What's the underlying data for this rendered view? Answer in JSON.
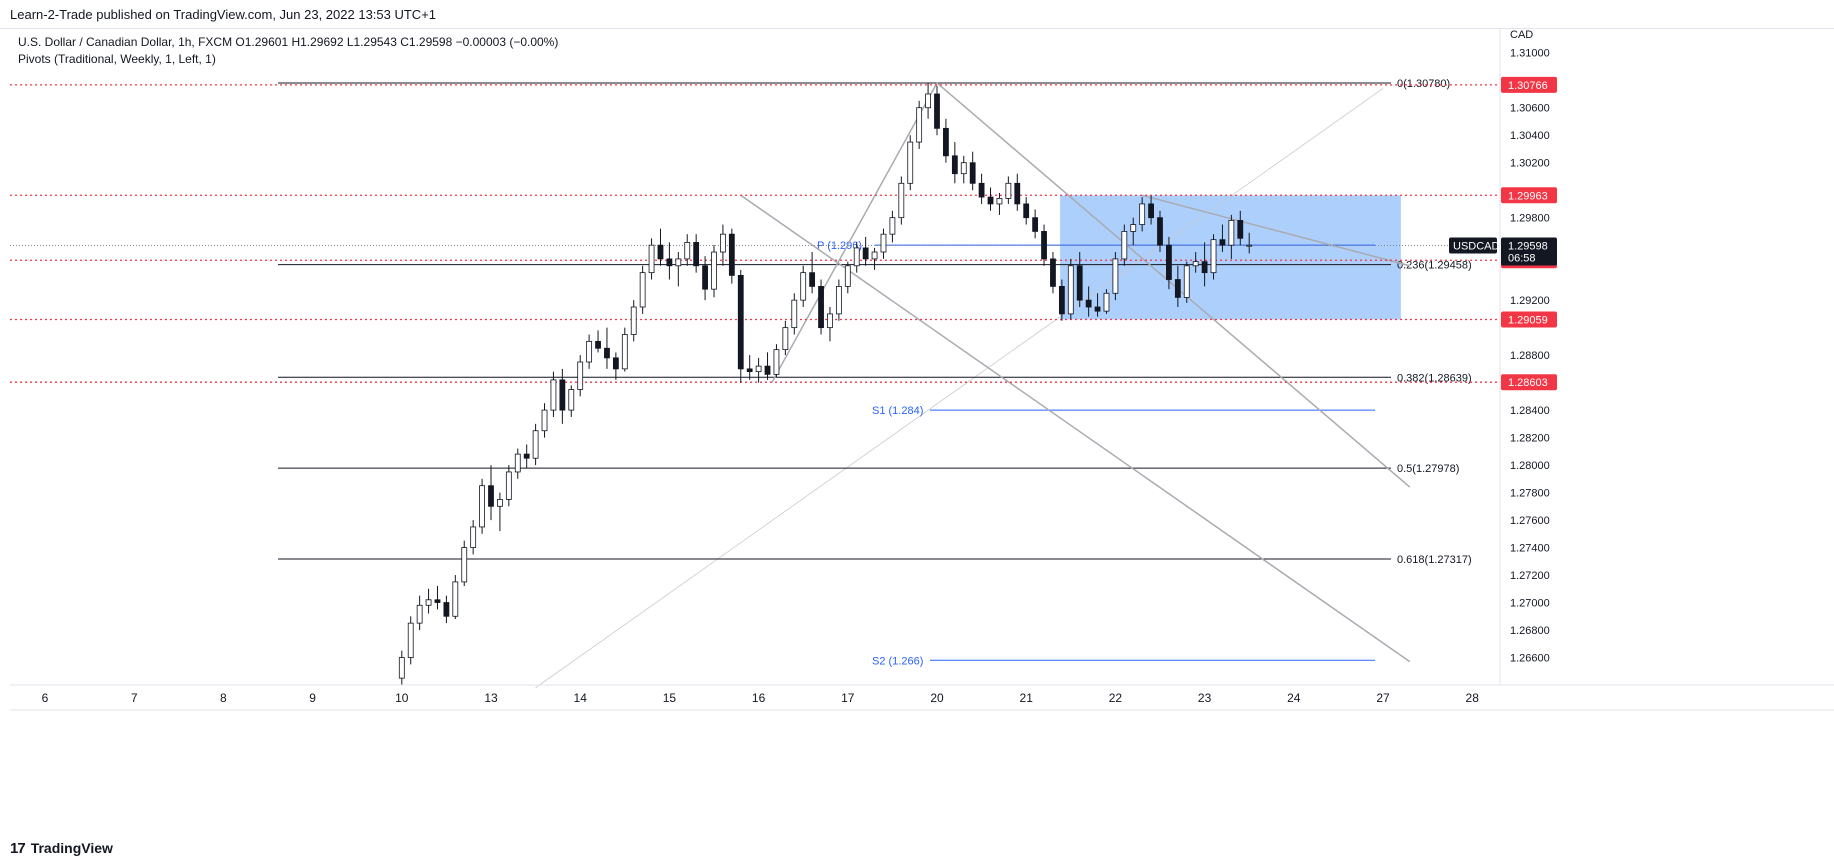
{
  "header": {
    "published": "Learn-2-Trade published on TradingView.com, Jun 23, 2022 13:53 UTC+1"
  },
  "legend": {
    "symbol_line": "U.S. Dollar / Canadian Dollar, 1h, FXCM  O1.29601  H1.29692  L1.29543  C1.29598  −0.00003 (−0.00%)",
    "indicator_line": "Pivots (Traditional, Weekly, 1, Left, 1)"
  },
  "footer": {
    "brand": "TradingView"
  },
  "chart_data": {
    "type": "candlestick",
    "symbol": "USDCAD",
    "currency": "CAD",
    "interval": "1h",
    "ohlc": {
      "open": 1.29601,
      "high": 1.29692,
      "low": 1.29543,
      "close": 1.29598
    },
    "ylim": [
      1.264,
      1.3118
    ],
    "y_ticks": [
      "1.31000",
      "1.30600",
      "1.30400",
      "1.30200",
      "1.29800",
      "1.29200",
      "1.28800",
      "1.28400",
      "1.28200",
      "1.28000",
      "1.27800",
      "1.27600",
      "1.27400",
      "1.27200",
      "1.27000",
      "1.26800",
      "1.26600"
    ],
    "x_ticks": [
      {
        "label": "6",
        "day": 0
      },
      {
        "label": "7",
        "day": 1
      },
      {
        "label": "8",
        "day": 2
      },
      {
        "label": "9",
        "day": 3
      },
      {
        "label": "10",
        "day": 4
      },
      {
        "label": "13",
        "day": 5
      },
      {
        "label": "14",
        "day": 6
      },
      {
        "label": "15",
        "day": 7
      },
      {
        "label": "16",
        "day": 8
      },
      {
        "label": "17",
        "day": 9
      },
      {
        "label": "20",
        "day": 10
      },
      {
        "label": "21",
        "day": 11
      },
      {
        "label": "22",
        "day": 12
      },
      {
        "label": "23",
        "day": 13
      },
      {
        "label": "24",
        "day": 14
      },
      {
        "label": "27",
        "day": 15
      },
      {
        "label": "28",
        "day": 16
      }
    ],
    "price_labels": [
      {
        "text": "1.30766",
        "value": 1.30766,
        "color": "#f23645"
      },
      {
        "text": "1.29963",
        "value": 1.29963,
        "color": "#f23645"
      },
      {
        "text": "1.29490",
        "value": 1.2949,
        "color": "#f23645"
      },
      {
        "text": "1.29059",
        "value": 1.29059,
        "color": "#f23645"
      },
      {
        "text": "1.28603",
        "value": 1.28603,
        "color": "#f23645"
      }
    ],
    "current_price": {
      "symbol": "USDCAD",
      "value": 1.29598,
      "text": "1.29598",
      "countdown": "06:58"
    },
    "horizontal_levels": [
      {
        "value": 1.30766,
        "style": "dotted",
        "color": "#f23645"
      },
      {
        "value": 1.29963,
        "style": "dotted",
        "color": "#f23645"
      },
      {
        "value": 1.2949,
        "style": "dotted",
        "color": "#f23645"
      },
      {
        "value": 1.29059,
        "style": "dotted",
        "color": "#f23645"
      },
      {
        "value": 1.28603,
        "style": "dotted",
        "color": "#f23645"
      }
    ],
    "fibonacci": [
      {
        "ratio": "0",
        "label": "0(1.30780)",
        "value": 1.3078
      },
      {
        "ratio": "0.236",
        "label": "0.236(1.29458)",
        "value": 1.29458
      },
      {
        "ratio": "0.382",
        "label": "0.382(1.28639)",
        "value": 1.28639
      },
      {
        "ratio": "0.5",
        "label": "0.5(1.27978)",
        "value": 1.27978
      },
      {
        "ratio": "0.618",
        "label": "0.618(1.27317)",
        "value": 1.27317
      }
    ],
    "pivots": [
      {
        "label": "P (1.296)",
        "value": 1.296
      },
      {
        "label": "S1 (1.284)",
        "value": 1.284
      },
      {
        "label": "S2 (1.266)",
        "value": 1.2658
      }
    ],
    "range_box": {
      "day_start": 11.38,
      "day_end": 15.2,
      "top": 1.29963,
      "bottom": 1.29059,
      "color": "#90bff9"
    },
    "trend_lines": [
      {
        "d1": 8.15,
        "v1": 1.28603,
        "d2": 10.0,
        "v2": 1.3078
      },
      {
        "d1": 10.0,
        "v1": 1.3078,
        "d2": 15.3,
        "v2": 1.2784
      },
      {
        "d1": 7.8,
        "v1": 1.29963,
        "d2": 15.3,
        "v2": 1.2657
      },
      {
        "d1": 12.3,
        "v1": 1.29963,
        "d2": 15.3,
        "v2": 1.2945
      }
    ],
    "fib_line": {
      "d1": 5.5,
      "v1": 1.2638,
      "d2": 15.0,
      "v2": 1.3074
    },
    "candles": [
      [
        4.0,
        1.2645,
        1.2665,
        1.264,
        1.266
      ],
      [
        4.1,
        1.266,
        1.269,
        1.2655,
        1.2685
      ],
      [
        4.2,
        1.2685,
        1.2705,
        1.268,
        1.2698
      ],
      [
        4.3,
        1.2698,
        1.271,
        1.2692,
        1.2702
      ],
      [
        4.4,
        1.2702,
        1.2712,
        1.2695,
        1.27
      ],
      [
        4.5,
        1.27,
        1.2705,
        1.2685,
        1.269
      ],
      [
        4.6,
        1.269,
        1.272,
        1.2688,
        1.2715
      ],
      [
        4.7,
        1.2715,
        1.2745,
        1.2712,
        1.274
      ],
      [
        4.8,
        1.274,
        1.276,
        1.2735,
        1.2755
      ],
      [
        4.9,
        1.2755,
        1.279,
        1.275,
        1.2785
      ],
      [
        5.0,
        1.2785,
        1.28,
        1.276,
        1.277
      ],
      [
        5.1,
        1.277,
        1.278,
        1.2752,
        1.2775
      ],
      [
        5.2,
        1.2775,
        1.28,
        1.277,
        1.2795
      ],
      [
        5.3,
        1.2795,
        1.2812,
        1.279,
        1.2808
      ],
      [
        5.4,
        1.2808,
        1.2815,
        1.2798,
        1.2805
      ],
      [
        5.5,
        1.2805,
        1.283,
        1.28,
        1.2825
      ],
      [
        5.6,
        1.2825,
        1.2845,
        1.282,
        1.284
      ],
      [
        5.7,
        1.284,
        1.2868,
        1.2835,
        1.2862
      ],
      [
        5.8,
        1.2862,
        1.287,
        1.283,
        1.284
      ],
      [
        5.9,
        1.284,
        1.2858,
        1.2835,
        1.2855
      ],
      [
        6.0,
        1.2855,
        1.288,
        1.285,
        1.2875
      ],
      [
        6.1,
        1.2875,
        1.2895,
        1.287,
        1.289
      ],
      [
        6.2,
        1.289,
        1.2898,
        1.2882,
        1.2885
      ],
      [
        6.3,
        1.2885,
        1.29,
        1.287,
        1.2878
      ],
      [
        6.4,
        1.2878,
        1.2882,
        1.2862,
        1.287
      ],
      [
        6.5,
        1.287,
        1.29,
        1.2868,
        1.2895
      ],
      [
        6.6,
        1.2895,
        1.292,
        1.289,
        1.2915
      ],
      [
        6.7,
        1.2915,
        1.2945,
        1.291,
        1.294
      ],
      [
        6.8,
        1.294,
        1.2965,
        1.2935,
        1.296
      ],
      [
        6.9,
        1.296,
        1.2972,
        1.2945,
        1.295
      ],
      [
        7.0,
        1.295,
        1.2962,
        1.2935,
        1.2945
      ],
      [
        7.1,
        1.2945,
        1.2955,
        1.293,
        1.295
      ],
      [
        7.2,
        1.295,
        1.2968,
        1.2945,
        1.2962
      ],
      [
        7.3,
        1.2962,
        1.2968,
        1.294,
        1.2945
      ],
      [
        7.4,
        1.2945,
        1.2952,
        1.292,
        1.2928
      ],
      [
        7.5,
        1.2928,
        1.296,
        1.2922,
        1.2955
      ],
      [
        7.6,
        1.2955,
        1.2975,
        1.2945,
        1.2968
      ],
      [
        7.7,
        1.2968,
        1.2972,
        1.2932,
        1.2938
      ],
      [
        7.8,
        1.2938,
        1.2942,
        1.286,
        1.287
      ],
      [
        7.9,
        1.287,
        1.288,
        1.2862,
        1.2868
      ],
      [
        8.0,
        1.2868,
        1.2878,
        1.286,
        1.2872
      ],
      [
        8.1,
        1.2872,
        1.2882,
        1.2862,
        1.2866
      ],
      [
        8.2,
        1.2866,
        1.2888,
        1.2864,
        1.2884
      ],
      [
        8.3,
        1.2884,
        1.2905,
        1.288,
        1.29
      ],
      [
        8.4,
        1.29,
        1.2925,
        1.2895,
        1.292
      ],
      [
        8.5,
        1.292,
        1.2945,
        1.2915,
        1.294
      ],
      [
        8.6,
        1.294,
        1.2955,
        1.2925,
        1.293
      ],
      [
        8.7,
        1.293,
        1.2935,
        1.2895,
        1.29
      ],
      [
        8.8,
        1.29,
        1.2915,
        1.289,
        1.291
      ],
      [
        8.9,
        1.291,
        1.2935,
        1.2905,
        1.293
      ],
      [
        9.0,
        1.293,
        1.2948,
        1.2925,
        1.2945
      ],
      [
        9.1,
        1.2945,
        1.2962,
        1.294,
        1.2958
      ],
      [
        9.2,
        1.2958,
        1.2966,
        1.2945,
        1.295
      ],
      [
        9.3,
        1.295,
        1.2958,
        1.2942,
        1.2955
      ],
      [
        9.4,
        1.2955,
        1.2972,
        1.295,
        1.2968
      ],
      [
        9.5,
        1.2968,
        1.2985,
        1.2962,
        1.298
      ],
      [
        9.6,
        1.298,
        1.301,
        1.2975,
        1.3005
      ],
      [
        9.7,
        1.3005,
        1.304,
        1.3,
        1.3035
      ],
      [
        9.8,
        1.3035,
        1.3065,
        1.303,
        1.306
      ],
      [
        9.9,
        1.306,
        1.3078,
        1.3052,
        1.307
      ],
      [
        10.0,
        1.307,
        1.3076,
        1.304,
        1.3045
      ],
      [
        10.1,
        1.3045,
        1.3052,
        1.302,
        1.3025
      ],
      [
        10.2,
        1.3025,
        1.3035,
        1.3005,
        1.3012
      ],
      [
        10.3,
        1.3012,
        1.3025,
        1.3005,
        1.302
      ],
      [
        10.4,
        1.302,
        1.3028,
        1.3,
        1.3005
      ],
      [
        10.5,
        1.3005,
        1.3012,
        1.299,
        1.2995
      ],
      [
        10.6,
        1.2995,
        1.3002,
        1.2985,
        1.299
      ],
      [
        10.7,
        1.299,
        1.2998,
        1.2982,
        1.2994
      ],
      [
        10.8,
        1.2994,
        1.301,
        1.299,
        1.3005
      ],
      [
        10.9,
        1.3005,
        1.3012,
        1.2985,
        1.299
      ],
      [
        11.0,
        1.299,
        1.2995,
        1.2975,
        1.298
      ],
      [
        11.1,
        1.298,
        1.2986,
        1.2965,
        1.297
      ],
      [
        11.2,
        1.297,
        1.2975,
        1.2945,
        1.295
      ],
      [
        11.3,
        1.295,
        1.2955,
        1.2925,
        1.293
      ],
      [
        11.4,
        1.293,
        1.2935,
        1.2905,
        1.291
      ],
      [
        11.5,
        1.291,
        1.295,
        1.2906,
        1.2945
      ],
      [
        11.6,
        1.2945,
        1.2955,
        1.2915,
        1.292
      ],
      [
        11.7,
        1.292,
        1.293,
        1.2908,
        1.2915
      ],
      [
        11.8,
        1.2915,
        1.2925,
        1.2908,
        1.2912
      ],
      [
        11.9,
        1.2912,
        1.2928,
        1.291,
        1.2925
      ],
      [
        12.0,
        1.2925,
        1.2955,
        1.292,
        1.295
      ],
      [
        12.1,
        1.295,
        1.2975,
        1.2945,
        1.297
      ],
      [
        12.2,
        1.297,
        1.298,
        1.296,
        1.2975
      ],
      [
        12.3,
        1.2975,
        1.2995,
        1.297,
        1.299
      ],
      [
        12.4,
        1.299,
        1.2996,
        1.2975,
        1.298
      ],
      [
        12.5,
        1.298,
        1.2985,
        1.2955,
        1.296
      ],
      [
        12.6,
        1.296,
        1.2966,
        1.2928,
        1.2935
      ],
      [
        12.7,
        1.2935,
        1.2945,
        1.2915,
        1.2922
      ],
      [
        12.8,
        1.2922,
        1.2948,
        1.2918,
        1.2945
      ],
      [
        12.9,
        1.2945,
        1.2955,
        1.294,
        1.2948
      ],
      [
        13.0,
        1.2948,
        1.2962,
        1.293,
        1.294
      ],
      [
        13.1,
        1.294,
        1.2968,
        1.2935,
        1.2964
      ],
      [
        13.2,
        1.2964,
        1.2975,
        1.2955,
        1.296
      ],
      [
        13.3,
        1.296,
        1.2982,
        1.295,
        1.2978
      ],
      [
        13.4,
        1.2978,
        1.2985,
        1.296,
        1.2965
      ],
      [
        13.5,
        1.296,
        1.2969,
        1.2954,
        1.296
      ]
    ]
  }
}
